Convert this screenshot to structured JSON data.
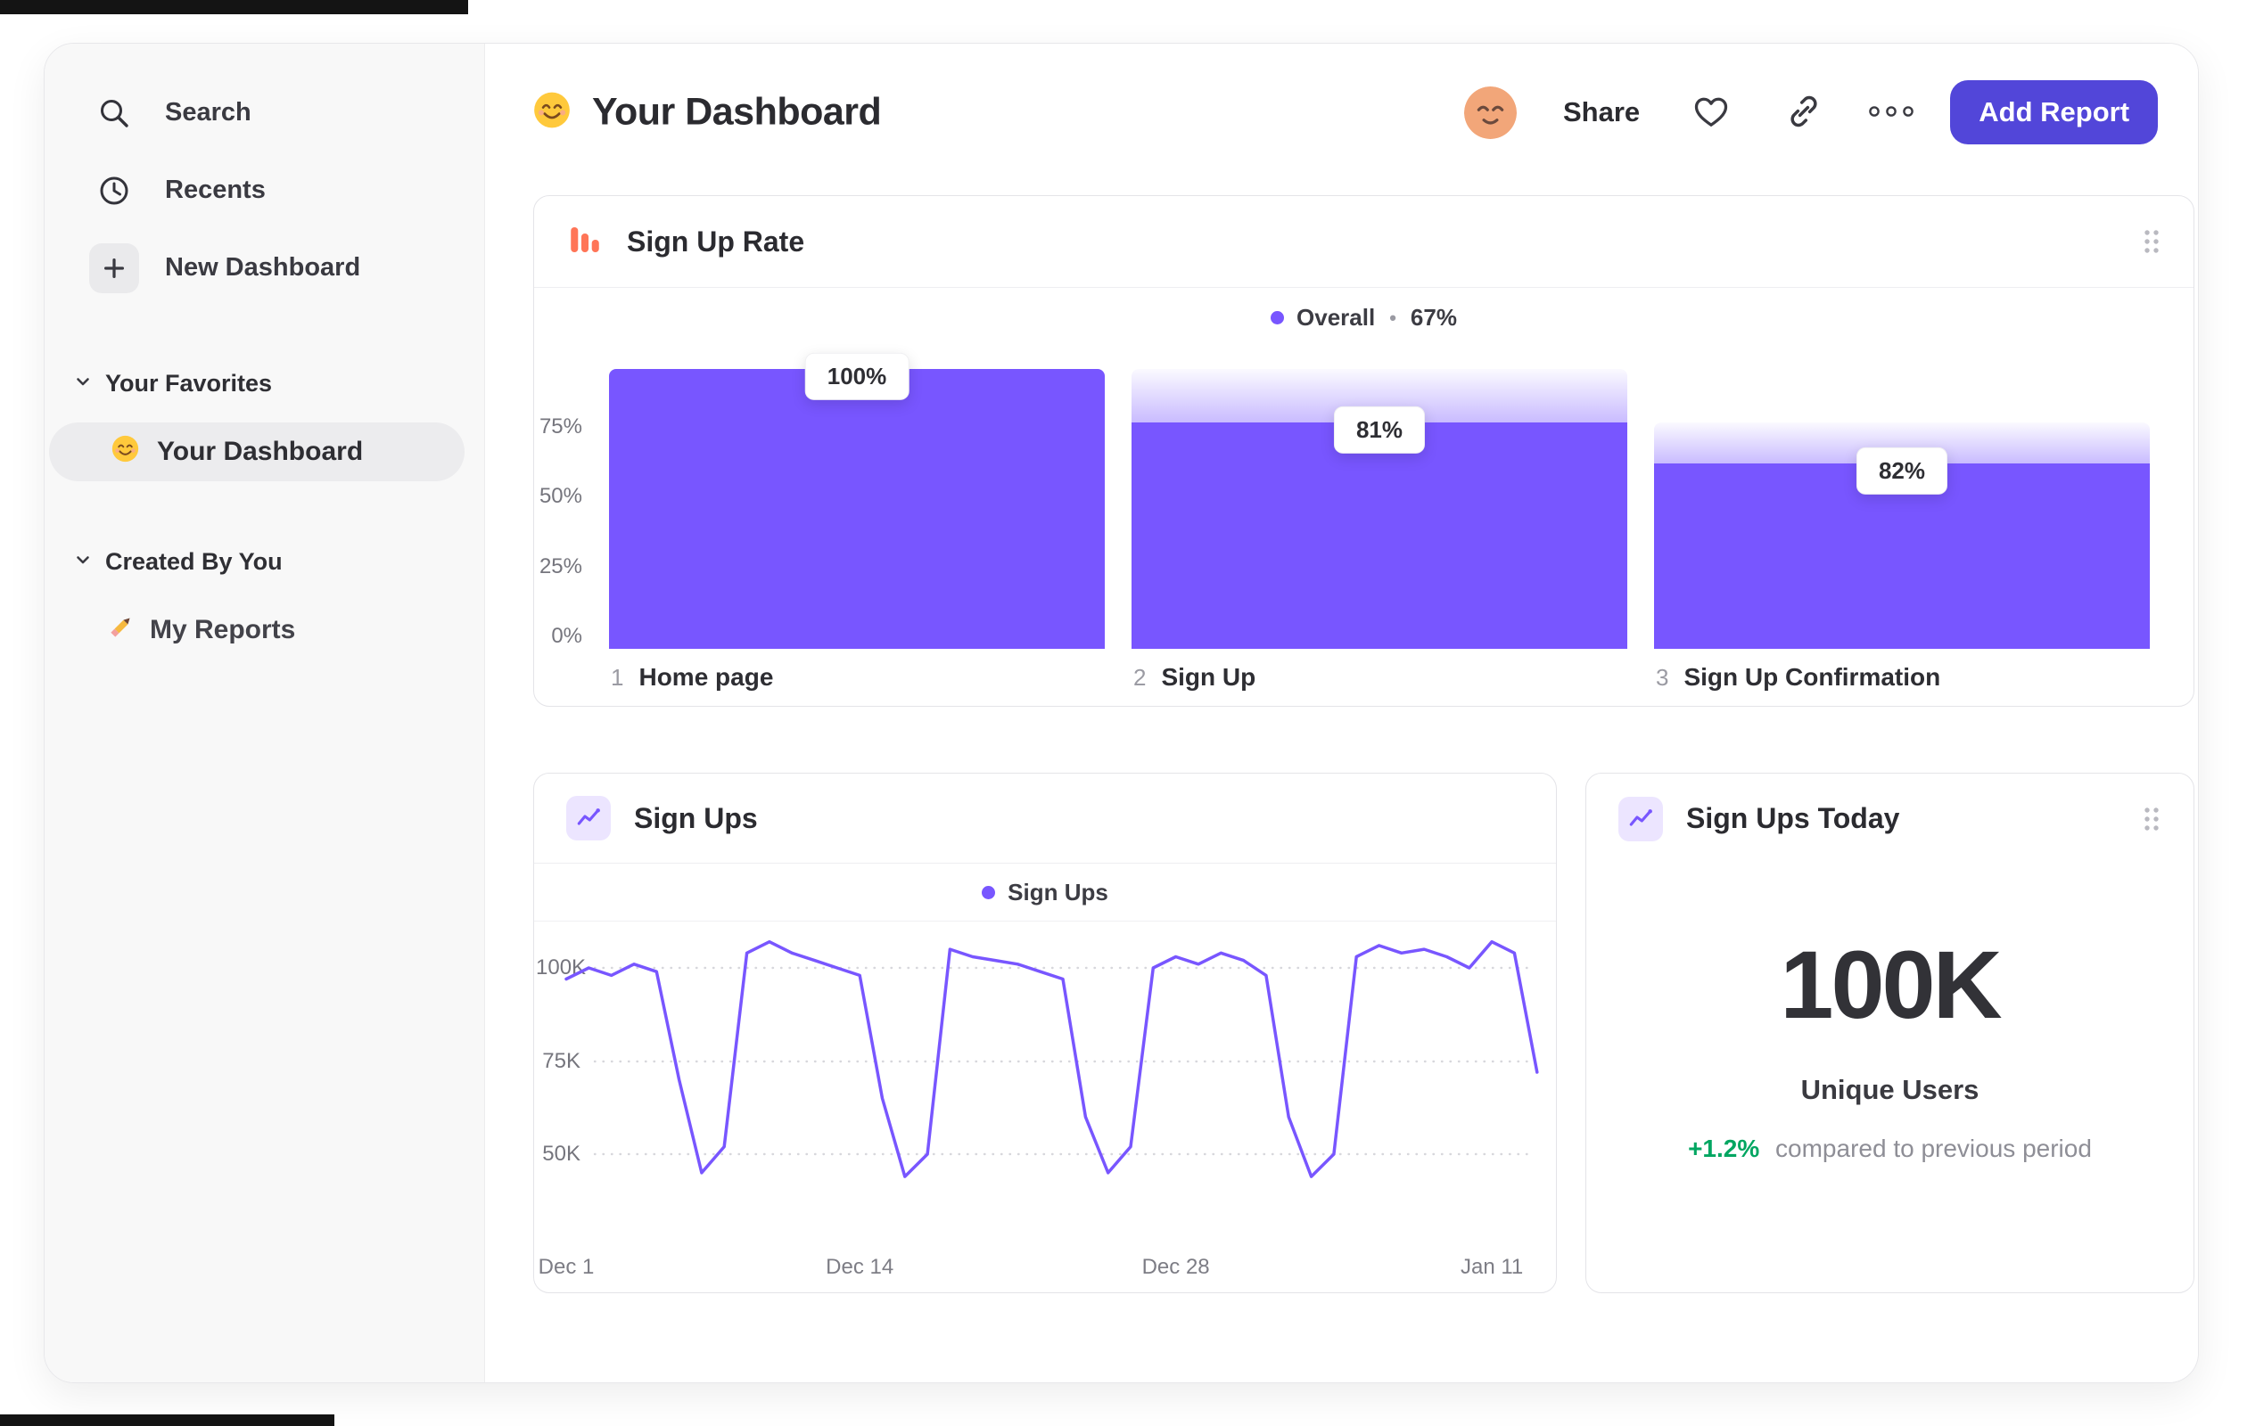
{
  "header": {
    "title": "Your Dashboard",
    "share_label": "Share",
    "add_report_label": "Add Report"
  },
  "sidebar": {
    "nav": [
      {
        "label": "Search"
      },
      {
        "label": "Recents"
      },
      {
        "label": "New Dashboard"
      }
    ],
    "sections": [
      {
        "title": "Your Favorites",
        "items": [
          {
            "label": "Your Dashboard",
            "selected": true
          }
        ]
      },
      {
        "title": "Created By You",
        "items": [
          {
            "label": "My Reports",
            "selected": false
          }
        ]
      }
    ]
  },
  "colors": {
    "purple": "#7856ff",
    "orange": "#ff7557",
    "green": "#00a661",
    "button": "#5246d9"
  },
  "chart_data": [
    {
      "type": "bar",
      "variant": "funnel",
      "title": "Sign Up Rate",
      "legend": {
        "label": "Overall",
        "separator": "•",
        "value": "67%"
      },
      "ylabels": [
        "75%",
        "50%",
        "25%",
        "0%"
      ],
      "ylim": [
        0,
        100
      ],
      "steps": [
        {
          "index": "1",
          "label": "Home page",
          "conversion_pct": 100,
          "cumulative_pct": 100,
          "tooltip": "100%"
        },
        {
          "index": "2",
          "label": "Sign Up",
          "conversion_pct": 81,
          "cumulative_pct": 81,
          "tooltip": "81%"
        },
        {
          "index": "3",
          "label": "Sign Up Confirmation",
          "conversion_pct": 82,
          "cumulative_pct": 66.4,
          "tooltip": "82%"
        }
      ]
    },
    {
      "type": "line",
      "title": "Sign Ups",
      "legend": {
        "label": "Sign Ups"
      },
      "ylabels": [
        "100K",
        "75K",
        "50K"
      ],
      "yvalues": [
        100,
        75,
        50
      ],
      "unit": "K",
      "xticks": [
        "Dec 1",
        "Dec 14",
        "Dec 28",
        "Jan 11"
      ],
      "xtick_day_index": [
        0,
        13,
        27,
        41
      ],
      "values": [
        97,
        100,
        98,
        101,
        99,
        70,
        45,
        52,
        104,
        107,
        104,
        102,
        100,
        98,
        65,
        44,
        50,
        105,
        103,
        102,
        101,
        99,
        97,
        60,
        45,
        52,
        100,
        103,
        101,
        104,
        102,
        98,
        60,
        44,
        50,
        103,
        106,
        104,
        105,
        103,
        100,
        107,
        104,
        72
      ],
      "ylim": [
        38,
        112
      ],
      "grid": "dotted-horizontal",
      "legend_position": "top-center"
    },
    {
      "type": "big_number",
      "title": "Sign Ups Today",
      "value": "100K",
      "label": "Unique Users",
      "delta": "+1.2%",
      "delta_text": "compared to previous period"
    }
  ]
}
